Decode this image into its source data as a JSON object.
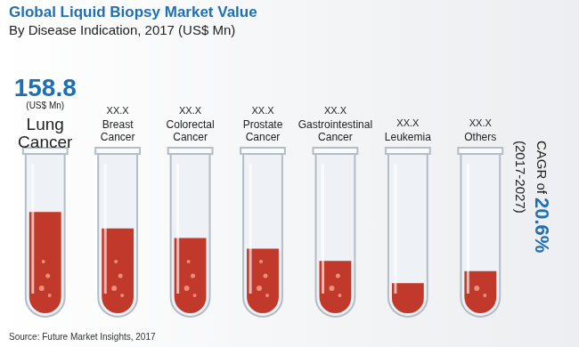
{
  "chart_data": {
    "type": "bar",
    "title": "Global Liquid Biopsy Market Value",
    "subtitle": "By Disease Indication, 2017 (US$ Mn)",
    "categories": [
      "Lung Cancer",
      "Breast Cancer",
      "Colorectal Cancer",
      "Prostate Cancer",
      "Gastrointestinal Cancer",
      "Leukemia",
      "Others"
    ],
    "values": [
      158.8,
      133,
      118,
      101,
      82,
      47,
      66
    ],
    "value_labels": [
      "158.8",
      "XX.X",
      "XX.X",
      "XX.X",
      "XX.X",
      "XX.X",
      "XX.X"
    ],
    "value_unit": "(US$ Mn)",
    "color": "#c0392b",
    "ylim": [
      0,
      240
    ],
    "grid": false,
    "tick_labels": false,
    "data_labels": true,
    "annotations": {
      "cagr_label": "CAGR of",
      "cagr_value": "20.6%",
      "cagr_period": "(2017-2027)",
      "source": "Source: Future Market Insights, 2017"
    }
  }
}
